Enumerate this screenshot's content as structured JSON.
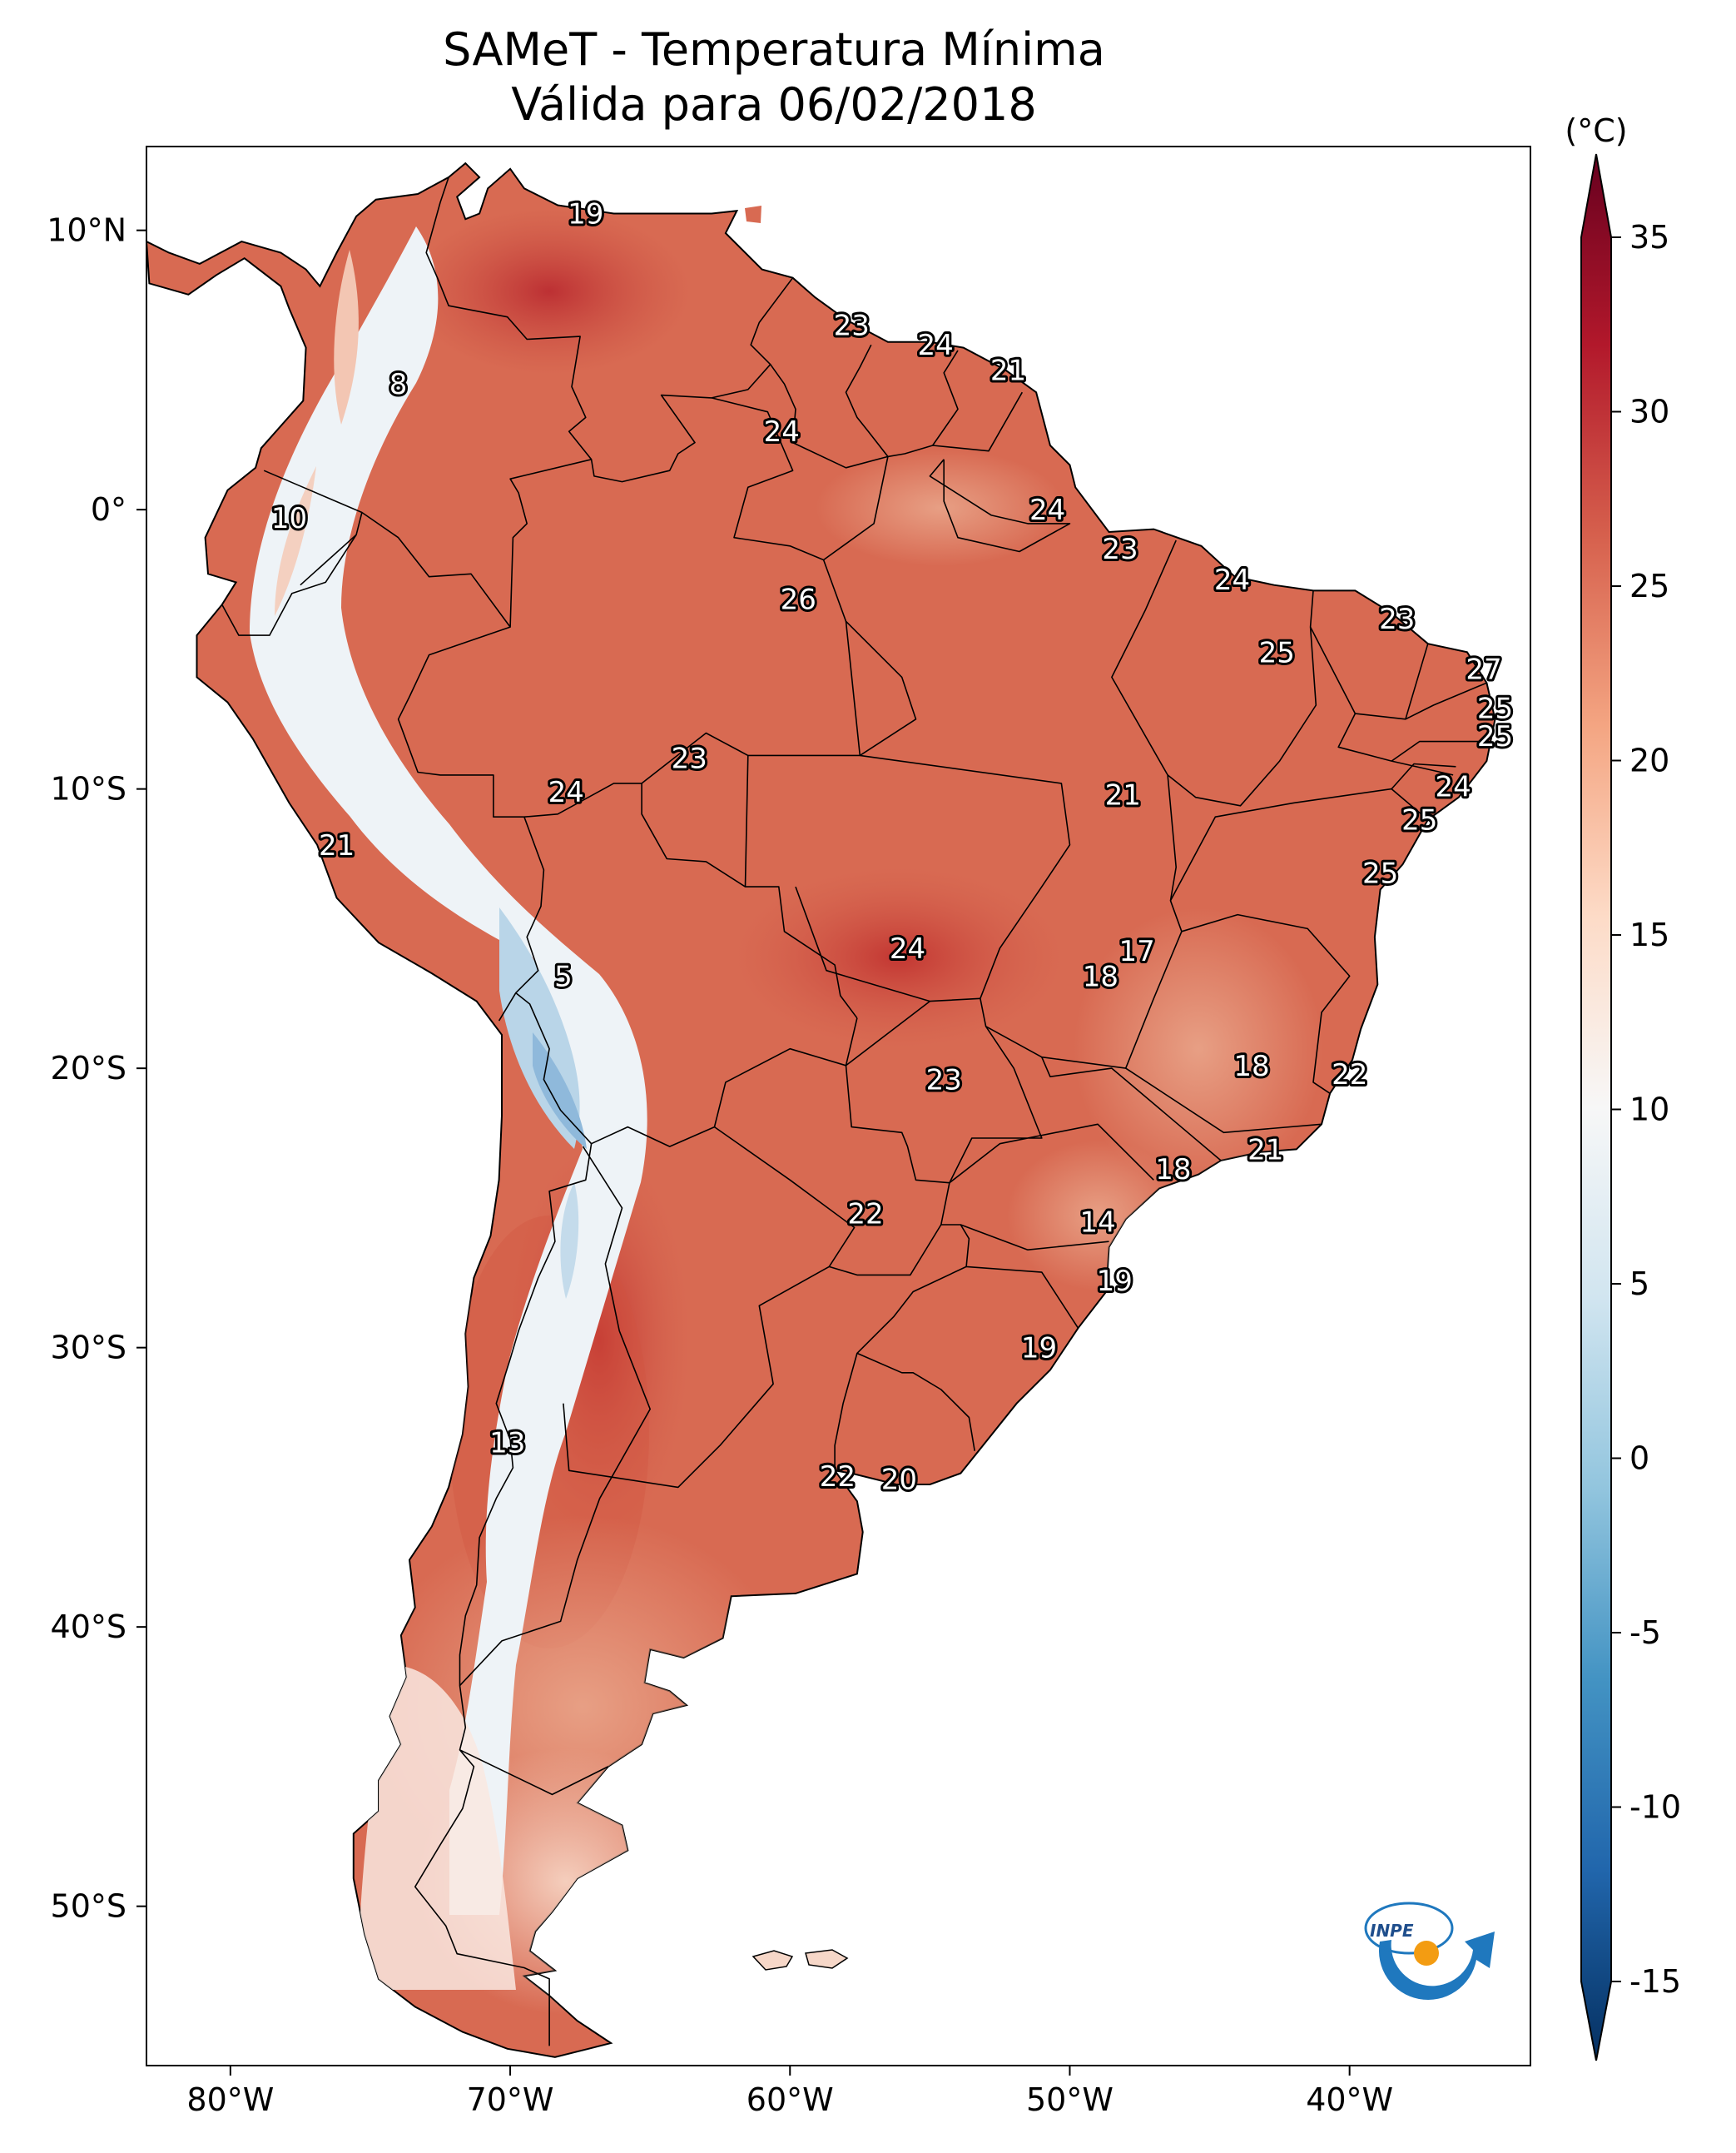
{
  "title": "SAMeT - Temperatura Mínima",
  "subtitle": "Válida para 06/02/2018",
  "colorbar": {
    "unit": "(°C)",
    "ticks": [
      "35",
      "30",
      "25",
      "20",
      "15",
      "10",
      "5",
      "0",
      "-5",
      "-10",
      "-15"
    ],
    "range": [
      -15,
      35
    ],
    "colors": [
      "#053061",
      "#2166ac",
      "#4393c3",
      "#92c5de",
      "#d1e5f0",
      "#f7f7f7",
      "#fddbc7",
      "#f4a582",
      "#d6604d",
      "#b2182b",
      "#67001f"
    ]
  },
  "axes": {
    "lon_ticks": [
      "80°W",
      "70°W",
      "60°W",
      "50°W",
      "40°W"
    ],
    "lat_ticks": [
      "10°N",
      "0°",
      "10°S",
      "20°S",
      "30°S",
      "40°S",
      "50°S"
    ]
  },
  "logo": {
    "text": "INPE"
  },
  "temperature_labels": [
    {
      "v": "19",
      "lon": -67.3,
      "lat": 10.6
    },
    {
      "v": "23",
      "lon": -57.8,
      "lat": 6.6
    },
    {
      "v": "24",
      "lon": -54.8,
      "lat": 5.9
    },
    {
      "v": "21",
      "lon": -52.2,
      "lat": 5.0
    },
    {
      "v": "8",
      "lon": -74.0,
      "lat": 4.5
    },
    {
      "v": "24",
      "lon": -60.3,
      "lat": 2.8
    },
    {
      "v": "24",
      "lon": -50.8,
      "lat": 0.0
    },
    {
      "v": "10",
      "lon": -77.9,
      "lat": -0.3
    },
    {
      "v": "23",
      "lon": -48.2,
      "lat": -1.4
    },
    {
      "v": "24",
      "lon": -44.2,
      "lat": -2.5
    },
    {
      "v": "26",
      "lon": -59.7,
      "lat": -3.2
    },
    {
      "v": "23",
      "lon": -38.3,
      "lat": -3.9
    },
    {
      "v": "25",
      "lon": -42.6,
      "lat": -5.1
    },
    {
      "v": "27",
      "lon": -35.2,
      "lat": -5.7
    },
    {
      "v": "25",
      "lon": -34.8,
      "lat": -7.1
    },
    {
      "v": "25",
      "lon": -34.8,
      "lat": -8.1
    },
    {
      "v": "23",
      "lon": -63.6,
      "lat": -8.9
    },
    {
      "v": "24",
      "lon": -36.3,
      "lat": -9.9
    },
    {
      "v": "24",
      "lon": -68.0,
      "lat": -10.1
    },
    {
      "v": "21",
      "lon": -48.1,
      "lat": -10.2
    },
    {
      "v": "25",
      "lon": -37.5,
      "lat": -11.1
    },
    {
      "v": "21",
      "lon": -76.2,
      "lat": -12.0
    },
    {
      "v": "25",
      "lon": -38.9,
      "lat": -13.0
    },
    {
      "v": "24",
      "lon": -55.8,
      "lat": -15.7
    },
    {
      "v": "17",
      "lon": -47.6,
      "lat": -15.8
    },
    {
      "v": "18",
      "lon": -48.9,
      "lat": -16.7
    },
    {
      "v": "5",
      "lon": -68.1,
      "lat": -16.7
    },
    {
      "v": "18",
      "lon": -43.5,
      "lat": -19.9
    },
    {
      "v": "22",
      "lon": -40.0,
      "lat": -20.2
    },
    {
      "v": "23",
      "lon": -54.5,
      "lat": -20.4
    },
    {
      "v": "21",
      "lon": -43.0,
      "lat": -22.9
    },
    {
      "v": "18",
      "lon": -46.3,
      "lat": -23.6
    },
    {
      "v": "22",
      "lon": -57.3,
      "lat": -25.2
    },
    {
      "v": "14",
      "lon": -49.0,
      "lat": -25.5
    },
    {
      "v": "19",
      "lon": -48.4,
      "lat": -27.6
    },
    {
      "v": "19",
      "lon": -51.1,
      "lat": -30.0
    },
    {
      "v": "13",
      "lon": -70.1,
      "lat": -33.4
    },
    {
      "v": "22",
      "lon": -58.3,
      "lat": -34.6
    },
    {
      "v": "20",
      "lon": -56.1,
      "lat": -34.7
    }
  ]
}
